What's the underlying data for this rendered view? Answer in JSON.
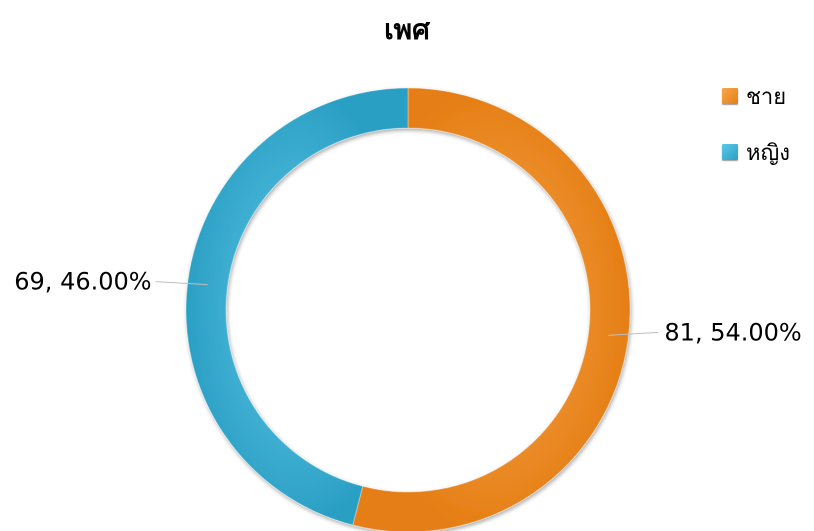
{
  "chart_data": {
    "type": "pie",
    "donut": true,
    "title": "เพศ",
    "categories": [
      "ชาย",
      "หญิง"
    ],
    "values": [
      81,
      69
    ],
    "percentages": [
      "54.00%",
      "46.00%"
    ],
    "colors": [
      "#F28C28",
      "#35B3D9"
    ],
    "legend_position": "top-right",
    "data_labels": [
      "81, 54.00%",
      "69, 46.00%"
    ]
  }
}
